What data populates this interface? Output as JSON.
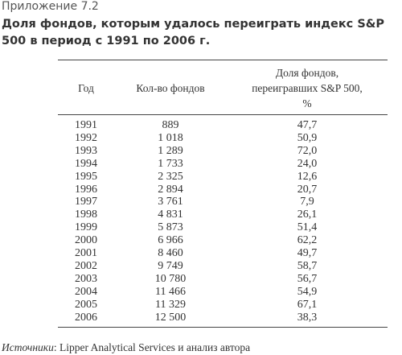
{
  "header": {
    "label": "Приложение 7.2",
    "title": "Доля фондов, которым удалось переиграть индекс S&P 500 в период с 1991 по 2006 г."
  },
  "table": {
    "columns": [
      "Год",
      "Кол-во фондов",
      "Доля фондов, переигравших S&P 500, %"
    ],
    "rows": [
      [
        "1991",
        "889",
        "47,7"
      ],
      [
        "1992",
        "1 018",
        "50,9"
      ],
      [
        "1993",
        "1 289",
        "72,0"
      ],
      [
        "1994",
        "1 733",
        "24,0"
      ],
      [
        "1995",
        "2 325",
        "12,6"
      ],
      [
        "1996",
        "2 894",
        "20,7"
      ],
      [
        "1997",
        "3 761",
        "7,9"
      ],
      [
        "1998",
        "4 831",
        "26,1"
      ],
      [
        "1999",
        "5 873",
        "51,4"
      ],
      [
        "2000",
        "6 966",
        "62,2"
      ],
      [
        "2001",
        "8 460",
        "49,7"
      ],
      [
        "2002",
        "9 749",
        "58,7"
      ],
      [
        "2003",
        "10 780",
        "56,7"
      ],
      [
        "2004",
        "11 466",
        "54,9"
      ],
      [
        "2005",
        "11 329",
        "67,1"
      ],
      [
        "2006",
        "12 500",
        "38,3"
      ]
    ]
  },
  "source": {
    "label": "Источники",
    "text": ": Lipper Analytical Services и анализ автора"
  }
}
